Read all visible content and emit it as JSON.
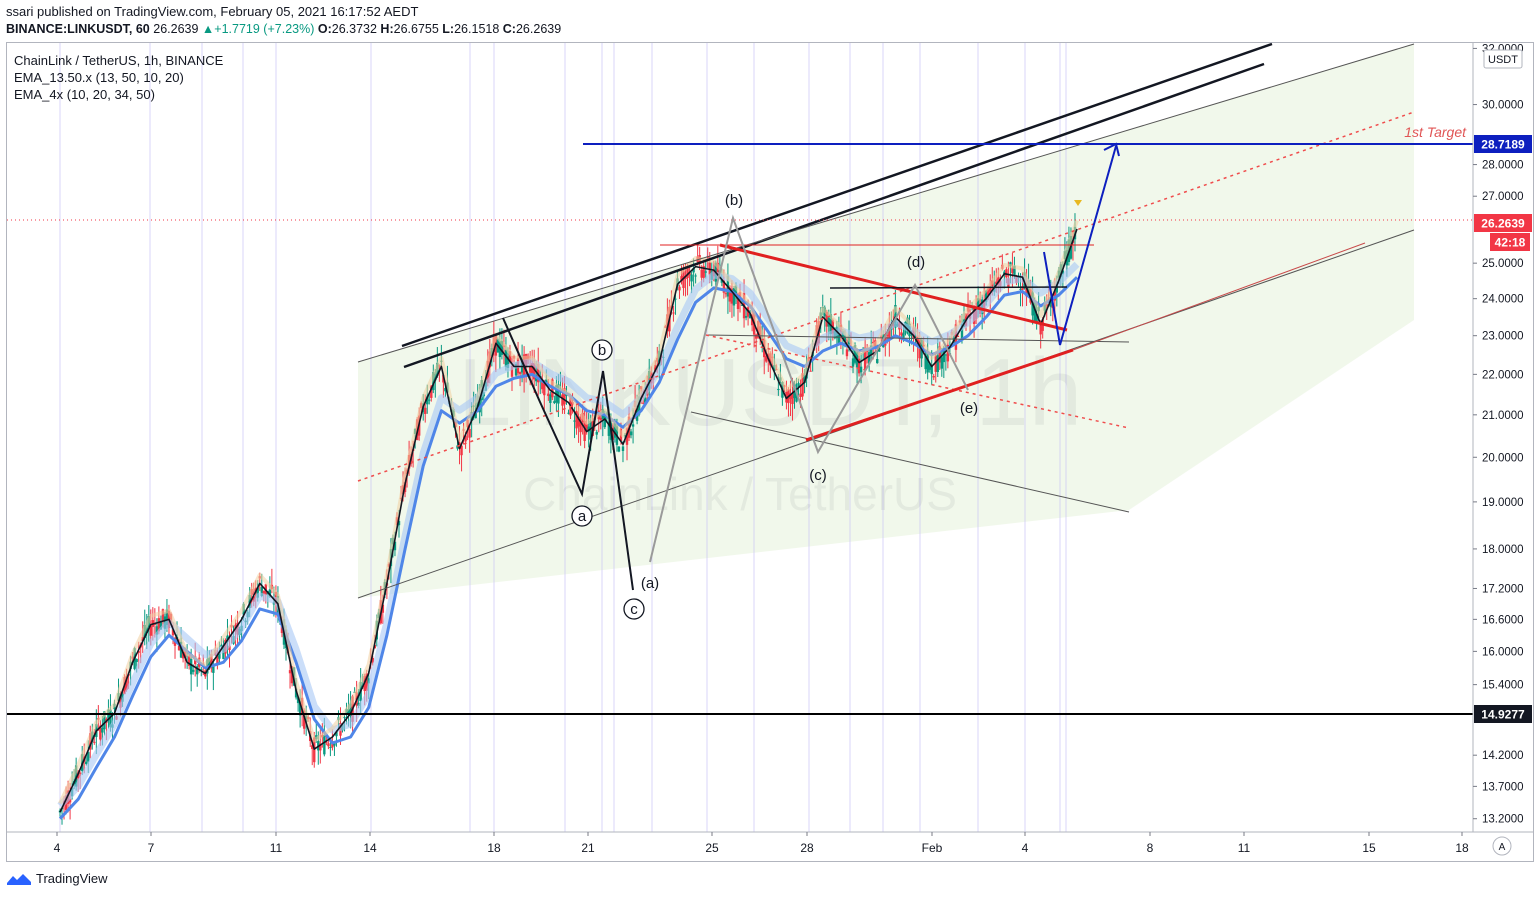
{
  "header": {
    "publisher_line": "ssari published on TradingView.com, February 05, 2021 16:17:52 AEDT",
    "symbol": "BINANCE:LINKUSDT, 60",
    "price": "26.2639",
    "change": "+1.7719 (+7.23%)",
    "o_label": "O:",
    "o_value": "26.3732",
    "h_label": "H:",
    "h_value": "26.6755",
    "l_label": "L:",
    "l_value": "26.1518",
    "c_label": "C:",
    "c_value": "26.2639"
  },
  "legend": {
    "title": "ChainLink / TetherUS, 1h, BINANCE",
    "ind1": "EMA_13.50.x (13, 50, 10, 20)",
    "ind2": "EMA_4x (10, 20, 34, 50)"
  },
  "watermark": {
    "symbol": "LINKUSDT, 1h",
    "name": "ChainLink / TetherUS"
  },
  "footer": {
    "brand": "TradingView"
  },
  "colors": {
    "up": "#089981",
    "down": "#f23645",
    "ema_fast": "#131722",
    "ema_slow": "#4f86e8",
    "channel": "#131722",
    "target": "#0d1fbf",
    "triangle": "#e02020",
    "dotted": "#f04c4c"
  },
  "chart_data": {
    "type": "line",
    "currency_label": "USDT",
    "y_ticks": [
      "32.0000",
      "30.0000",
      "28.0000",
      "27.0000",
      "25.0000",
      "24.0000",
      "23.0000",
      "22.0000",
      "21.0000",
      "20.0000",
      "19.0000",
      "18.0000",
      "17.2000",
      "16.6000",
      "16.0000",
      "15.4000",
      "14.2000",
      "13.7000",
      "13.2000"
    ],
    "x_ticks": [
      "4",
      "7",
      "11",
      "14",
      "18",
      "21",
      "25",
      "28",
      "Feb",
      "4",
      "8",
      "11",
      "15",
      "18"
    ],
    "price_labels": [
      {
        "label": "28.7189",
        "kind": "target"
      },
      {
        "label": "26.2639",
        "kind": "last"
      },
      {
        "label": "42:18",
        "kind": "countdown"
      },
      {
        "label": "14.9277",
        "kind": "support"
      }
    ],
    "annotations": {
      "target_text": "1st Target",
      "wave_a": "a",
      "wave_b": "b",
      "wave_c": "c",
      "wave_A": "(a)",
      "wave_B": "(b)",
      "wave_C": "(c)",
      "wave_D": "(d)",
      "wave_E": "(e)"
    },
    "series": [
      {
        "name": "EMA_13.50.x",
        "values": [
          13.3,
          13.9,
          14.6,
          14.9,
          15.8,
          16.5,
          16.6,
          15.8,
          15.6,
          16.1,
          16.6,
          17.3,
          16.9,
          15.3,
          14.3,
          14.5,
          14.9,
          15.6,
          17.3,
          19.4,
          21.2,
          22.2,
          20.2,
          21.2,
          22.8,
          22.2,
          22.2,
          21.6,
          21.3,
          20.6,
          20.9,
          20.3,
          21.4,
          22.3,
          24.4,
          24.9,
          24.8,
          24.2,
          23.6,
          22.4,
          21.4,
          21.8,
          23.5,
          23.0,
          22.3,
          22.6,
          23.5,
          23.0,
          22.2,
          22.7,
          23.5,
          24.0,
          24.7,
          24.6,
          23.3,
          24.5,
          26.0
        ]
      },
      {
        "name": "EMA_4x",
        "values": [
          13.2,
          13.5,
          14.0,
          14.5,
          15.2,
          15.9,
          16.3,
          16.0,
          15.7,
          15.8,
          16.2,
          16.8,
          16.7,
          15.8,
          14.8,
          14.4,
          14.5,
          15.0,
          16.3,
          18.0,
          19.8,
          21.1,
          20.8,
          21.1,
          21.7,
          21.9,
          22.0,
          21.7,
          21.5,
          21.1,
          21.0,
          20.7,
          21.1,
          21.8,
          22.9,
          23.9,
          24.3,
          24.2,
          23.8,
          23.1,
          22.4,
          22.2,
          22.6,
          22.8,
          22.6,
          22.7,
          23.0,
          22.8,
          22.5,
          22.7,
          23.0,
          23.5,
          24.1,
          24.2,
          23.8,
          24.1,
          24.6
        ]
      }
    ],
    "horizontal_levels": [
      28.7189,
      26.2639,
      14.9277
    ],
    "y_range": [
      13.0,
      32.2
    ],
    "log_scale": true,
    "grid": false,
    "legend_position": "top-left"
  }
}
